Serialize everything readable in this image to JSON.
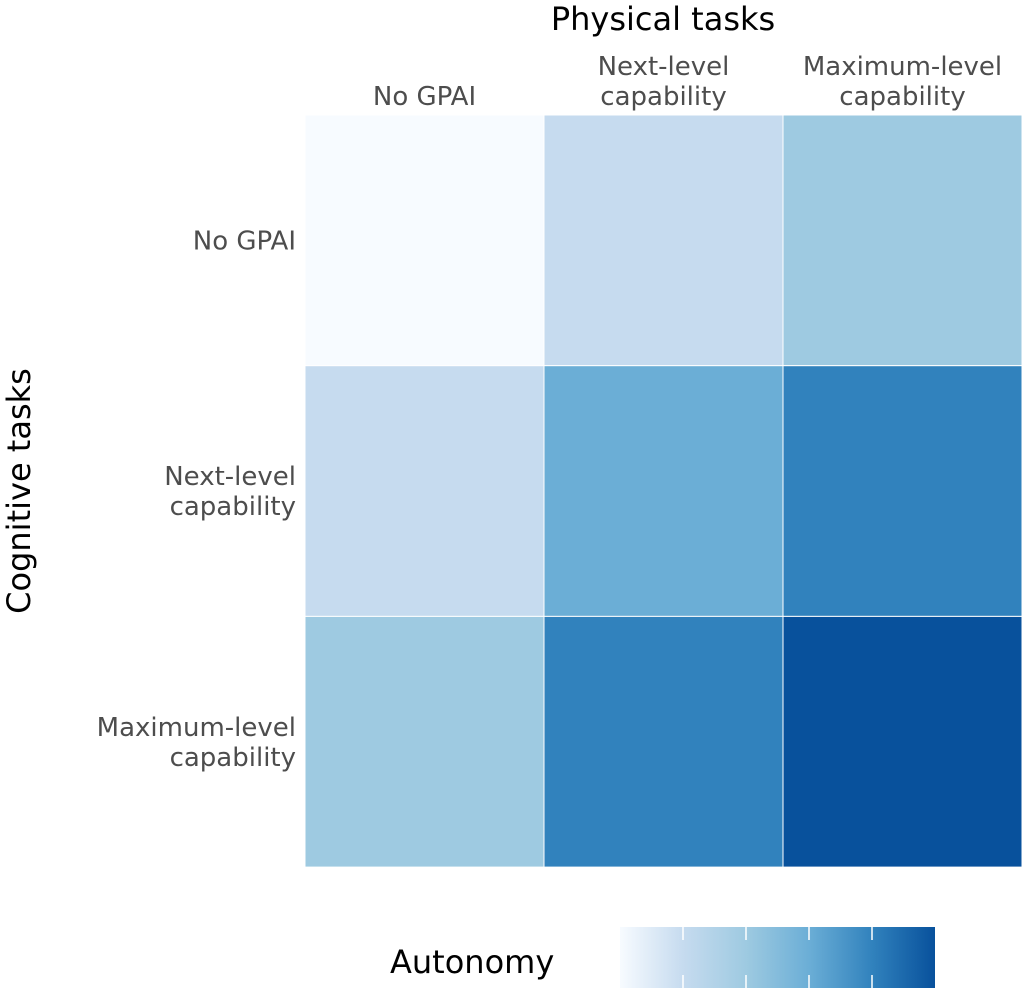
{
  "chart_data": {
    "type": "heatmap",
    "title": "",
    "xlabel": "Physical tasks",
    "ylabel": "Cognitive tasks",
    "x_categories": [
      "No GPAI",
      "Next-level capability",
      "Maximum-level capability"
    ],
    "y_categories": [
      "No GPAI",
      "Next-level capability",
      "Maximum-level capability"
    ],
    "values": [
      [
        0,
        1,
        2
      ],
      [
        1,
        3,
        4
      ],
      [
        2,
        4,
        5
      ]
    ],
    "value_range": [
      0,
      5
    ],
    "colormap": "Blues",
    "cell_colors": [
      [
        "#f7fbff",
        "#c6dbef",
        "#9ecae1"
      ],
      [
        "#c6dbef",
        "#6baed6",
        "#3182bd"
      ],
      [
        "#9ecae1",
        "#3182bd",
        "#08519c"
      ]
    ],
    "legend": {
      "title": "Autonomy",
      "placement": "bottom",
      "gradient": [
        "#f7fbff",
        "#c6dbef",
        "#9ecae1",
        "#6baed6",
        "#3182bd",
        "#08519c"
      ]
    },
    "grid": false
  }
}
